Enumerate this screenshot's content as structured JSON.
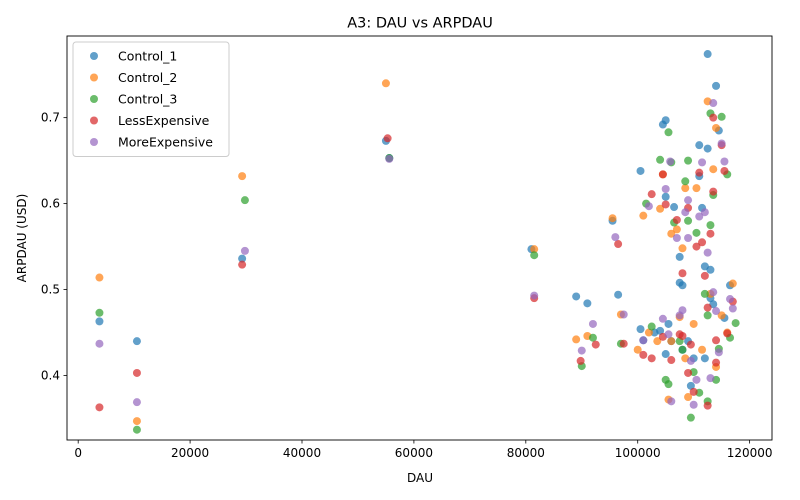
{
  "chart_data": {
    "type": "scatter",
    "title": "A3: DAU vs ARPDAU",
    "xlabel": "DAU",
    "ylabel": "ARPDAU (USD)",
    "xlim": [
      -2000,
      124000
    ],
    "ylim": [
      0.325,
      0.795
    ],
    "xticks": [
      0,
      20000,
      40000,
      60000,
      80000,
      100000,
      120000
    ],
    "yticks": [
      0.4,
      0.5,
      0.6,
      0.7
    ],
    "grid": false,
    "legend_position": "top-left",
    "series": [
      {
        "name": "Control_1",
        "color": "#1f77b4",
        "points": [
          [
            3800,
            0.463
          ],
          [
            10500,
            0.44
          ],
          [
            29300,
            0.536
          ],
          [
            55000,
            0.673
          ],
          [
            55600,
            0.653
          ],
          [
            81000,
            0.547
          ],
          [
            89000,
            0.492
          ],
          [
            91000,
            0.484
          ],
          [
            96500,
            0.494
          ],
          [
            95500,
            0.58
          ],
          [
            100500,
            0.638
          ],
          [
            100500,
            0.454
          ],
          [
            101000,
            0.441
          ],
          [
            103000,
            0.45
          ],
          [
            104000,
            0.452
          ],
          [
            104500,
            0.692
          ],
          [
            105000,
            0.697
          ],
          [
            105000,
            0.608
          ],
          [
            105000,
            0.425
          ],
          [
            105500,
            0.46
          ],
          [
            106000,
            0.44
          ],
          [
            106500,
            0.596
          ],
          [
            107500,
            0.508
          ],
          [
            107500,
            0.538
          ],
          [
            108000,
            0.505
          ],
          [
            108000,
            0.43
          ],
          [
            109000,
            0.44
          ],
          [
            109500,
            0.388
          ],
          [
            110000,
            0.42
          ],
          [
            111000,
            0.668
          ],
          [
            111000,
            0.632
          ],
          [
            111500,
            0.595
          ],
          [
            112000,
            0.527
          ],
          [
            112000,
            0.42
          ],
          [
            112500,
            0.774
          ],
          [
            112500,
            0.664
          ],
          [
            113000,
            0.523
          ],
          [
            113000,
            0.49
          ],
          [
            113500,
            0.483
          ],
          [
            114000,
            0.737
          ],
          [
            114500,
            0.685
          ],
          [
            115500,
            0.467
          ],
          [
            116500,
            0.505
          ]
        ]
      },
      {
        "name": "Control_2",
        "color": "#ff7f0e",
        "points": [
          [
            3800,
            0.514
          ],
          [
            10500,
            0.347
          ],
          [
            29300,
            0.632
          ],
          [
            55000,
            0.74
          ],
          [
            81500,
            0.547
          ],
          [
            89000,
            0.442
          ],
          [
            91000,
            0.446
          ],
          [
            95500,
            0.583
          ],
          [
            97000,
            0.471
          ],
          [
            100000,
            0.43
          ],
          [
            101000,
            0.586
          ],
          [
            102000,
            0.45
          ],
          [
            103500,
            0.44
          ],
          [
            104000,
            0.594
          ],
          [
            104500,
            0.634
          ],
          [
            105500,
            0.372
          ],
          [
            106000,
            0.565
          ],
          [
            106000,
            0.44
          ],
          [
            107000,
            0.57
          ],
          [
            107500,
            0.468
          ],
          [
            108000,
            0.548
          ],
          [
            108500,
            0.618
          ],
          [
            108500,
            0.42
          ],
          [
            109000,
            0.375
          ],
          [
            110000,
            0.46
          ],
          [
            110500,
            0.618
          ],
          [
            111500,
            0.43
          ],
          [
            112500,
            0.719
          ],
          [
            113000,
            0.495
          ],
          [
            113500,
            0.64
          ],
          [
            114000,
            0.688
          ],
          [
            114000,
            0.41
          ],
          [
            115000,
            0.47
          ],
          [
            116000,
            0.45
          ],
          [
            117000,
            0.507
          ]
        ]
      },
      {
        "name": "Control_3",
        "color": "#2ca02c",
        "points": [
          [
            3800,
            0.473
          ],
          [
            10500,
            0.337
          ],
          [
            29800,
            0.604
          ],
          [
            55600,
            0.653
          ],
          [
            81500,
            0.54
          ],
          [
            90000,
            0.411
          ],
          [
            92000,
            0.444
          ],
          [
            97000,
            0.437
          ],
          [
            101500,
            0.6
          ],
          [
            102500,
            0.457
          ],
          [
            104000,
            0.651
          ],
          [
            105000,
            0.395
          ],
          [
            105500,
            0.683
          ],
          [
            105500,
            0.39
          ],
          [
            106000,
            0.648
          ],
          [
            106500,
            0.578
          ],
          [
            107500,
            0.44
          ],
          [
            108000,
            0.43
          ],
          [
            108500,
            0.626
          ],
          [
            109000,
            0.65
          ],
          [
            109000,
            0.58
          ],
          [
            109500,
            0.351
          ],
          [
            110000,
            0.404
          ],
          [
            110500,
            0.566
          ],
          [
            111000,
            0.38
          ],
          [
            112000,
            0.495
          ],
          [
            112500,
            0.37
          ],
          [
            112500,
            0.47
          ],
          [
            113000,
            0.705
          ],
          [
            113000,
            0.575
          ],
          [
            113500,
            0.61
          ],
          [
            114000,
            0.395
          ],
          [
            114500,
            0.431
          ],
          [
            115000,
            0.701
          ],
          [
            116000,
            0.634
          ],
          [
            116500,
            0.444
          ],
          [
            117500,
            0.461
          ]
        ]
      },
      {
        "name": "LessExpensive",
        "color": "#d62728",
        "points": [
          [
            3800,
            0.363
          ],
          [
            10500,
            0.403
          ],
          [
            29300,
            0.529
          ],
          [
            55300,
            0.676
          ],
          [
            81500,
            0.49
          ],
          [
            89800,
            0.417
          ],
          [
            92500,
            0.436
          ],
          [
            96500,
            0.553
          ],
          [
            97500,
            0.437
          ],
          [
            101000,
            0.424
          ],
          [
            102500,
            0.611
          ],
          [
            102500,
            0.42
          ],
          [
            104500,
            0.634
          ],
          [
            104500,
            0.445
          ],
          [
            105000,
            0.599
          ],
          [
            106000,
            0.418
          ],
          [
            107000,
            0.581
          ],
          [
            107500,
            0.448
          ],
          [
            108000,
            0.519
          ],
          [
            108000,
            0.446
          ],
          [
            109000,
            0.595
          ],
          [
            109000,
            0.403
          ],
          [
            109500,
            0.436
          ],
          [
            110000,
            0.381
          ],
          [
            110500,
            0.55
          ],
          [
            111000,
            0.636
          ],
          [
            111500,
            0.555
          ],
          [
            112000,
            0.516
          ],
          [
            112500,
            0.479
          ],
          [
            112500,
            0.365
          ],
          [
            113000,
            0.565
          ],
          [
            113500,
            0.7
          ],
          [
            113500,
            0.614
          ],
          [
            114000,
            0.441
          ],
          [
            114000,
            0.415
          ],
          [
            115000,
            0.668
          ],
          [
            115500,
            0.638
          ],
          [
            116000,
            0.449
          ],
          [
            117000,
            0.486
          ]
        ]
      },
      {
        "name": "MoreExpensive",
        "color": "#9467bd",
        "points": [
          [
            3800,
            0.437
          ],
          [
            10500,
            0.369
          ],
          [
            29800,
            0.545
          ],
          [
            55600,
            0.652
          ],
          [
            81500,
            0.493
          ],
          [
            90000,
            0.429
          ],
          [
            92000,
            0.46
          ],
          [
            96000,
            0.561
          ],
          [
            97500,
            0.471
          ],
          [
            101000,
            0.441
          ],
          [
            102000,
            0.597
          ],
          [
            104500,
            0.466
          ],
          [
            105000,
            0.617
          ],
          [
            105500,
            0.448
          ],
          [
            105800,
            0.649
          ],
          [
            106000,
            0.37
          ],
          [
            107000,
            0.56
          ],
          [
            107500,
            0.47
          ],
          [
            108000,
            0.476
          ],
          [
            108500,
            0.59
          ],
          [
            109000,
            0.604
          ],
          [
            109000,
            0.56
          ],
          [
            109500,
            0.417
          ],
          [
            110000,
            0.366
          ],
          [
            110500,
            0.395
          ],
          [
            111000,
            0.585
          ],
          [
            111500,
            0.648
          ],
          [
            112000,
            0.59
          ],
          [
            112500,
            0.543
          ],
          [
            113000,
            0.397
          ],
          [
            113500,
            0.717
          ],
          [
            113500,
            0.497
          ],
          [
            114000,
            0.475
          ],
          [
            114500,
            0.427
          ],
          [
            115000,
            0.67
          ],
          [
            115500,
            0.649
          ],
          [
            116500,
            0.489
          ],
          [
            117000,
            0.478
          ]
        ]
      }
    ]
  }
}
